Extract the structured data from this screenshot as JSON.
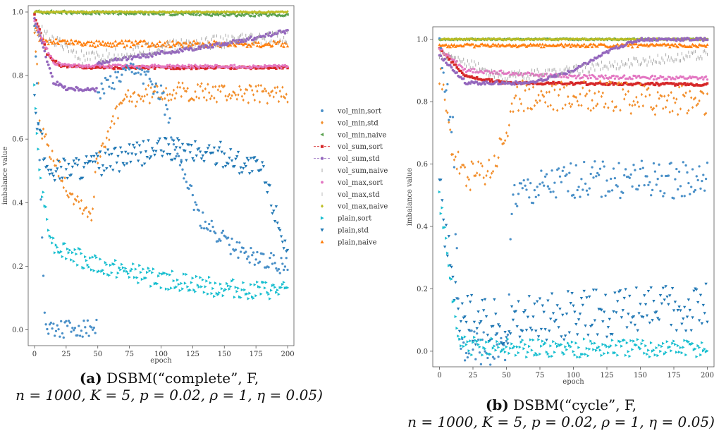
{
  "legend": [
    {
      "label": "vol_min,sort",
      "color": "#4a90c8",
      "marker": "dot"
    },
    {
      "label": "vol_min,std",
      "color": "#f28e2b",
      "marker": "diamond"
    },
    {
      "label": "vol_min,naive",
      "color": "#59a14f",
      "marker": "triangle-left"
    },
    {
      "label": "vol_sum,sort",
      "color": "#d62728",
      "marker": "square"
    },
    {
      "label": "vol_sum,std",
      "color": "#9467bd",
      "marker": "pentagon"
    },
    {
      "label": "vol_sum,naive",
      "color": "#aaaaaa",
      "marker": "tick"
    },
    {
      "label": "vol_max,sort",
      "color": "#e377c2",
      "marker": "dot"
    },
    {
      "label": "vol_max,std",
      "color": "#bbbbbb",
      "marker": "tick"
    },
    {
      "label": "vol_max,naive",
      "color": "#bcbd22",
      "marker": "diamond"
    },
    {
      "label": "plain,sort",
      "color": "#17becf",
      "marker": "triangle-right"
    },
    {
      "label": "plain,std",
      "color": "#1f77b4",
      "marker": "triangle-down"
    },
    {
      "label": "plain,naive",
      "color": "#ff7f0e",
      "marker": "triangle-up"
    }
  ],
  "captions": [
    {
      "tag": "(a)",
      "line1": "DSBM(“complete”, F,",
      "line2": "n = 1000, K = 5, p = 0.02, ρ = 1, η = 0.05)"
    },
    {
      "tag": "(b)",
      "line1": "DSBM(“cycle”, F,",
      "line2": "n = 1000, K = 5, p = 0.02, ρ = 1, η = 0.05)"
    }
  ],
  "chart_data": [
    {
      "type": "scatter",
      "xlabel": "epoch",
      "ylabel": "imbalance value",
      "xlim": [
        -5,
        205
      ],
      "ylim": [
        -0.05,
        1.02
      ],
      "xticks": [
        0,
        25,
        50,
        75,
        100,
        125,
        150,
        175,
        200
      ],
      "yticks": [
        0.0,
        0.2,
        0.4,
        0.6,
        0.8,
        1.0
      ],
      "grid": false,
      "legend_position": "right",
      "series": [
        {
          "name": "vol_min,naive",
          "trend": [
            [
              0,
              1.0
            ],
            [
              200,
              0.99
            ]
          ],
          "noise": 0.005
        },
        {
          "name": "vol_max,naive",
          "trend": [
            [
              0,
              1.0
            ],
            [
              200,
              1.0
            ]
          ],
          "noise": 0.002
        },
        {
          "name": "plain,naive",
          "trend": [
            [
              0,
              0.95
            ],
            [
              5,
              0.91
            ],
            [
              50,
              0.9
            ],
            [
              200,
              0.9
            ]
          ],
          "noise": 0.01
        },
        {
          "name": "vol_sum,sort",
          "trend": [
            [
              0,
              0.99
            ],
            [
              10,
              0.87
            ],
            [
              20,
              0.83
            ],
            [
              50,
              0.825
            ],
            [
              200,
              0.825
            ]
          ],
          "noise": 0.004
        },
        {
          "name": "vol_max,sort",
          "trend": [
            [
              0,
              0.97
            ],
            [
              15,
              0.84
            ],
            [
              30,
              0.83
            ],
            [
              200,
              0.828
            ]
          ],
          "noise": 0.005
        },
        {
          "name": "vol_sum,std",
          "trend": [
            [
              0,
              0.98
            ],
            [
              15,
              0.78
            ],
            [
              25,
              0.76
            ],
            [
              49,
              0.755
            ],
            [
              50,
              0.84
            ],
            [
              100,
              0.87
            ],
            [
              150,
              0.9
            ],
            [
              200,
              0.94
            ]
          ],
          "noise": 0.006
        },
        {
          "name": "vol_sum,naive",
          "trend": [
            [
              0,
              0.95
            ],
            [
              40,
              0.85
            ],
            [
              70,
              0.87
            ],
            [
              120,
              0.9
            ],
            [
              200,
              0.92
            ]
          ],
          "noise": 0.02
        },
        {
          "name": "vol_min,std",
          "trend": [
            [
              0,
              0.95
            ],
            [
              5,
              0.62
            ],
            [
              15,
              0.55
            ],
            [
              25,
              0.45
            ],
            [
              45,
              0.36
            ],
            [
              50,
              0.55
            ],
            [
              70,
              0.72
            ],
            [
              100,
              0.75
            ],
            [
              200,
              0.74
            ]
          ],
          "noise": 0.03
        },
        {
          "name": "vol_min,sort",
          "trend": [
            [
              0,
              0.98
            ],
            [
              8,
              0.05
            ],
            [
              12,
              0.005
            ],
            [
              49,
              0.005
            ],
            [
              50,
              0.75
            ],
            [
              80,
              0.82
            ],
            [
              100,
              0.75
            ],
            [
              110,
              0.6
            ],
            [
              130,
              0.35
            ],
            [
              160,
              0.25
            ],
            [
              200,
              0.2
            ]
          ],
          "noise": 0.03
        },
        {
          "name": "plain,std",
          "trend": [
            [
              0,
              0.7
            ],
            [
              10,
              0.5
            ],
            [
              50,
              0.52
            ],
            [
              100,
              0.57
            ],
            [
              150,
              0.55
            ],
            [
              180,
              0.5
            ],
            [
              200,
              0.25
            ]
          ],
          "noise": 0.04
        },
        {
          "name": "plain,sort",
          "trend": [
            [
              0,
              0.75
            ],
            [
              5,
              0.45
            ],
            [
              15,
              0.27
            ],
            [
              50,
              0.2
            ],
            [
              100,
              0.16
            ],
            [
              150,
              0.13
            ],
            [
              200,
              0.12
            ]
          ],
          "noise": 0.03
        }
      ]
    },
    {
      "type": "scatter",
      "xlabel": "epoch",
      "ylabel": "imbalance value",
      "xlim": [
        -5,
        205
      ],
      "ylim": [
        -0.05,
        1.04
      ],
      "xticks": [
        0,
        25,
        50,
        75,
        100,
        125,
        150,
        175,
        200
      ],
      "yticks": [
        0.0,
        0.2,
        0.4,
        0.6,
        0.8,
        1.0
      ],
      "grid": false,
      "series": [
        {
          "name": "vol_min,naive",
          "trend": [
            [
              0,
              1.0
            ],
            [
              200,
              1.0
            ]
          ],
          "noise": 0.002
        },
        {
          "name": "vol_max,naive",
          "trend": [
            [
              0,
              1.0
            ],
            [
              200,
              1.0
            ]
          ],
          "noise": 0.002
        },
        {
          "name": "plain,naive",
          "trend": [
            [
              0,
              0.98
            ],
            [
              200,
              0.98
            ]
          ],
          "noise": 0.005
        },
        {
          "name": "vol_sum,sort",
          "trend": [
            [
              0,
              0.97
            ],
            [
              20,
              0.88
            ],
            [
              50,
              0.86
            ],
            [
              200,
              0.855
            ]
          ],
          "noise": 0.004
        },
        {
          "name": "vol_max,sort",
          "trend": [
            [
              0,
              0.97
            ],
            [
              20,
              0.9
            ],
            [
              100,
              0.88
            ],
            [
              200,
              0.875
            ]
          ],
          "noise": 0.006
        },
        {
          "name": "vol_sum,std",
          "trend": [
            [
              0,
              0.95
            ],
            [
              20,
              0.86
            ],
            [
              70,
              0.86
            ],
            [
              100,
              0.9
            ],
            [
              130,
              0.97
            ],
            [
              150,
              1.0
            ],
            [
              200,
              1.0
            ]
          ],
          "noise": 0.005
        },
        {
          "name": "vol_sum,naive",
          "trend": [
            [
              0,
              0.95
            ],
            [
              50,
              0.88
            ],
            [
              100,
              0.9
            ],
            [
              150,
              0.93
            ],
            [
              200,
              0.95
            ]
          ],
          "noise": 0.015
        },
        {
          "name": "vol_min,std",
          "trend": [
            [
              0,
              0.9
            ],
            [
              10,
              0.65
            ],
            [
              20,
              0.55
            ],
            [
              40,
              0.6
            ],
            [
              60,
              0.82
            ],
            [
              100,
              0.82
            ],
            [
              200,
              0.8
            ]
          ],
          "noise": 0.05
        },
        {
          "name": "vol_min,sort",
          "trend": [
            [
              0,
              0.95
            ],
            [
              10,
              0.7
            ],
            [
              15,
              0.01
            ],
            [
              50,
              0.0
            ],
            [
              55,
              0.5
            ],
            [
              100,
              0.55
            ],
            [
              200,
              0.55
            ]
          ],
          "noise": 0.06
        },
        {
          "name": "plain,std",
          "trend": [
            [
              0,
              0.5
            ],
            [
              15,
              0.1
            ],
            [
              60,
              0.1
            ],
            [
              120,
              0.12
            ],
            [
              200,
              0.15
            ]
          ],
          "noise": 0.08
        },
        {
          "name": "plain,sort",
          "trend": [
            [
              0,
              0.5
            ],
            [
              15,
              0.02
            ],
            [
              60,
              0.01
            ],
            [
              120,
              0.01
            ],
            [
              200,
              0.01
            ]
          ],
          "noise": 0.03
        }
      ]
    }
  ]
}
